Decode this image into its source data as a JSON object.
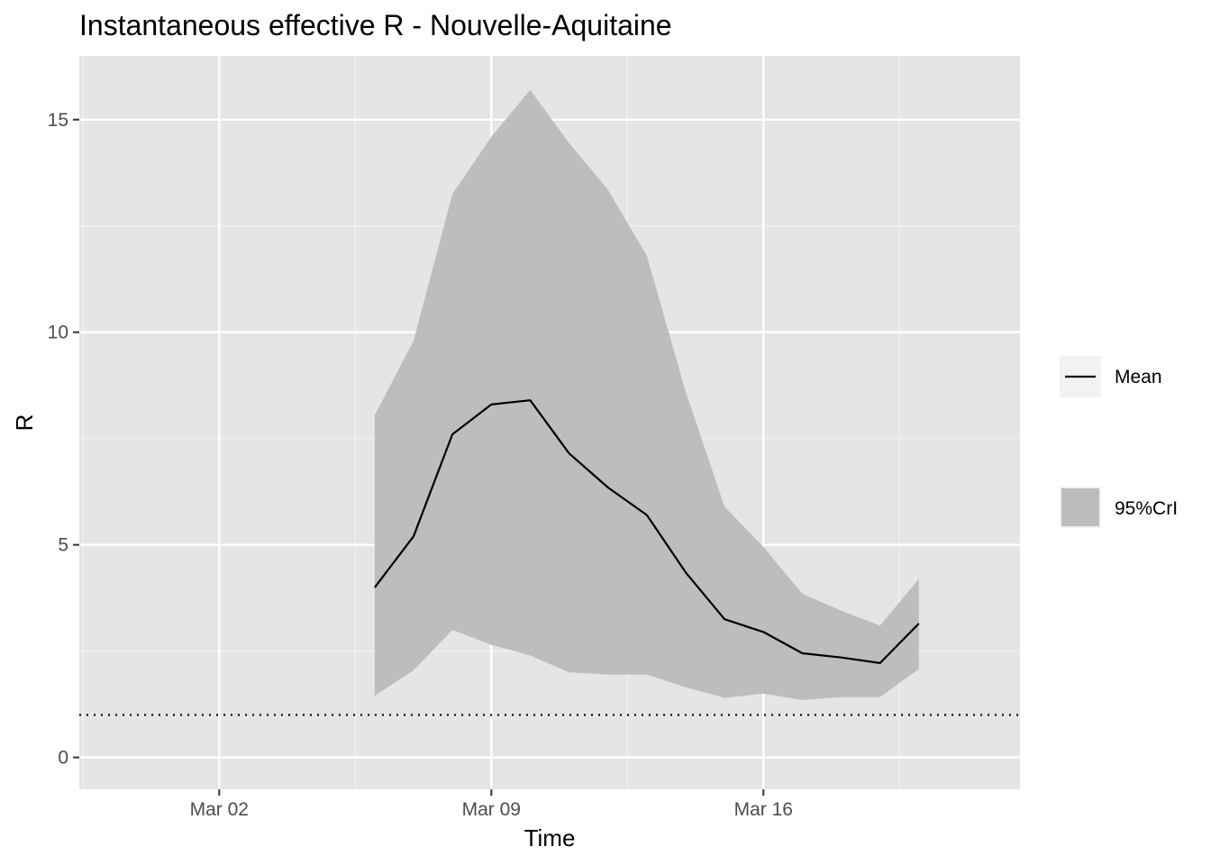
{
  "chart_data": {
    "type": "line",
    "title": "Instantaneous effective R -  Nouvelle-Aquitaine",
    "xlabel": "Time",
    "ylabel": "R",
    "x_tick_labels": [
      "Mar 02",
      "Mar 09",
      "Mar 16"
    ],
    "y_tick_labels": [
      "0",
      "5",
      "10",
      "15"
    ],
    "ylim": [
      -0.75,
      16.5
    ],
    "xlim_days": [
      -3.6,
      20.6
    ],
    "grid": true,
    "legend_position": "right",
    "reference_line": {
      "y": 1,
      "style": "dotted"
    },
    "x_dates": [
      "Mar 06",
      "Mar 07",
      "Mar 08",
      "Mar 09",
      "Mar 10",
      "Mar 11",
      "Mar 12",
      "Mar 13",
      "Mar 14",
      "Mar 15",
      "Mar 16",
      "Mar 17",
      "Mar 18",
      "Mar 19",
      "Mar 20"
    ],
    "x_days": [
      4,
      5,
      6,
      7,
      8,
      9,
      10,
      11,
      12,
      13,
      14,
      15,
      16,
      17,
      18
    ],
    "series": [
      {
        "name": "Mean",
        "kind": "line",
        "color": "#000000",
        "values": [
          4.0,
          5.2,
          7.6,
          8.3,
          8.4,
          7.15,
          6.35,
          5.7,
          4.35,
          3.25,
          2.95,
          2.45,
          2.35,
          2.22,
          3.15
        ]
      },
      {
        "name": "95%CrI",
        "kind": "ribbon",
        "color": "#bdbdbd",
        "upper": [
          8.05,
          9.8,
          13.25,
          14.6,
          15.7,
          14.45,
          13.35,
          11.8,
          8.6,
          5.9,
          4.95,
          3.85,
          3.45,
          3.1,
          4.2
        ],
        "lower": [
          1.45,
          2.05,
          3.0,
          2.65,
          2.4,
          2.0,
          1.95,
          1.95,
          1.65,
          1.4,
          1.5,
          1.35,
          1.42,
          1.42,
          2.08
        ]
      }
    ]
  }
}
